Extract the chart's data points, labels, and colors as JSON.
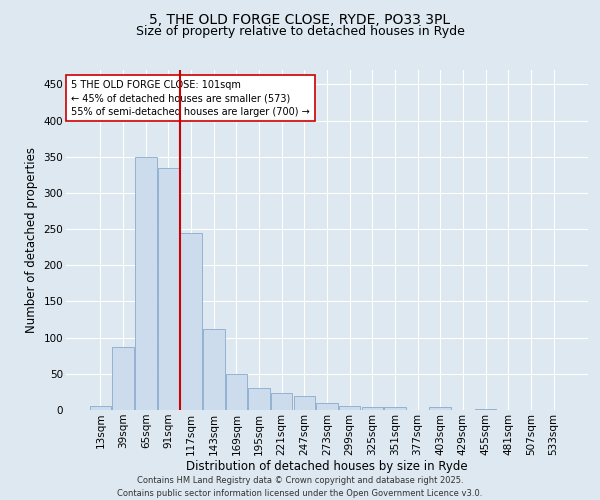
{
  "title_line1": "5, THE OLD FORGE CLOSE, RYDE, PO33 3PL",
  "title_line2": "Size of property relative to detached houses in Ryde",
  "xlabel": "Distribution of detached houses by size in Ryde",
  "ylabel": "Number of detached properties",
  "categories": [
    "13sqm",
    "39sqm",
    "65sqm",
    "91sqm",
    "117sqm",
    "143sqm",
    "169sqm",
    "195sqm",
    "221sqm",
    "247sqm",
    "273sqm",
    "299sqm",
    "325sqm",
    "351sqm",
    "377sqm",
    "403sqm",
    "429sqm",
    "455sqm",
    "481sqm",
    "507sqm",
    "533sqm"
  ],
  "values": [
    5,
    87,
    350,
    335,
    245,
    112,
    50,
    30,
    24,
    20,
    9,
    5,
    4,
    4,
    0,
    4,
    0,
    1,
    0,
    0,
    0
  ],
  "bar_color": "#ccdcec",
  "bar_edgecolor": "#88aacc",
  "red_line_index": 3,
  "annotation_text": "5 THE OLD FORGE CLOSE: 101sqm\n← 45% of detached houses are smaller (573)\n55% of semi-detached houses are larger (700) →",
  "annotation_box_color": "#ffffff",
  "annotation_box_edgecolor": "#cc0000",
  "ylim": [
    0,
    470
  ],
  "yticks": [
    0,
    50,
    100,
    150,
    200,
    250,
    300,
    350,
    400,
    450
  ],
  "bg_color": "#dde8f0",
  "footer_text": "Contains HM Land Registry data © Crown copyright and database right 2025.\nContains public sector information licensed under the Open Government Licence v3.0.",
  "title_fontsize": 10,
  "subtitle_fontsize": 9,
  "tick_fontsize": 7.5,
  "label_fontsize": 8.5,
  "annotation_fontsize": 7,
  "footer_fontsize": 6
}
